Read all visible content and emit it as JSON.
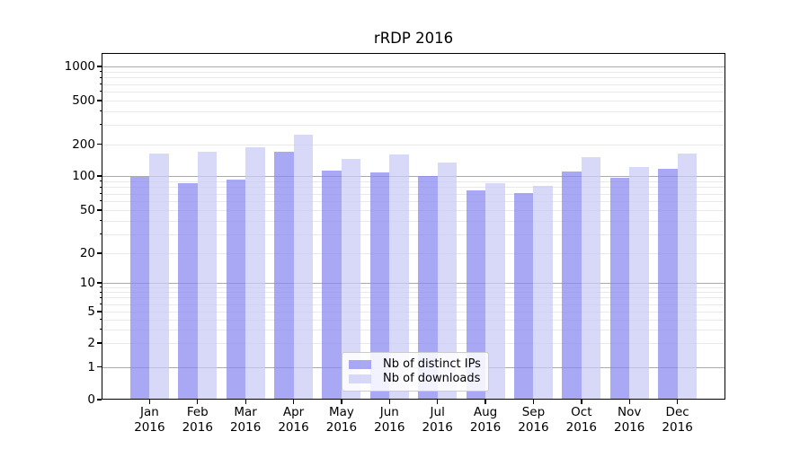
{
  "title": "rRDP 2016",
  "chart_data": {
    "type": "bar",
    "title": "rRDP 2016",
    "categories": [
      "Jan 2016",
      "Feb 2016",
      "Mar 2016",
      "Apr 2016",
      "May 2016",
      "Jun 2016",
      "Jul 2016",
      "Aug 2016",
      "Sep 2016",
      "Oct 2016",
      "Nov 2016",
      "Dec 2016"
    ],
    "series": [
      {
        "name": "Nb of distinct IPs",
        "color": "#8686f1",
        "values": [
          99,
          87,
          93,
          168,
          113,
          108,
          100,
          75,
          71,
          110,
          97,
          118
        ]
      },
      {
        "name": "Nb of downloads",
        "color": "#c9c9f5",
        "values": [
          163,
          170,
          187,
          246,
          145,
          160,
          134,
          86,
          82,
          151,
          121,
          163
        ]
      }
    ],
    "bar_alpha": 0.72,
    "yscale": "symlog",
    "xlabel": "",
    "ylabel": "",
    "y_tick_values": [
      0,
      1,
      2,
      5,
      10,
      20,
      50,
      100,
      200,
      500,
      1000
    ],
    "y_tick_labels": [
      "0",
      "1",
      "2",
      "5",
      "10",
      "20",
      "50",
      "100",
      "200",
      "500",
      "1000"
    ],
    "ylim": [
      0,
      1330
    ],
    "grid": "both",
    "legend_position": "lower center"
  },
  "legend": {
    "items": [
      {
        "label": "Nb of distinct IPs"
      },
      {
        "label": "Nb of downloads"
      }
    ]
  },
  "colors": {
    "background": "#ffffff",
    "axis": "#000000",
    "major_grid": "#ababab",
    "minor_grid": "#e9e9e9",
    "bar_distinct_ips": "#8686f1",
    "bar_downloads": "#c9c9f5",
    "legend_border": "#cccccc"
  }
}
